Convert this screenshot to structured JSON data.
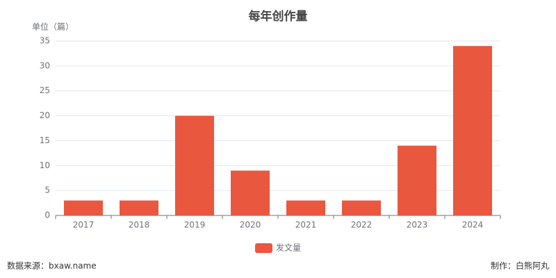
{
  "chart_data": {
    "type": "bar",
    "title": "每年创作量",
    "y_axis_label": "单位（篇）",
    "categories": [
      "2017",
      "2018",
      "2019",
      "2020",
      "2021",
      "2022",
      "2023",
      "2024"
    ],
    "series": [
      {
        "name": "发文量",
        "color": "#e9573f",
        "values": [
          3,
          3,
          20,
          9,
          3,
          3,
          14,
          34
        ]
      }
    ],
    "ylim": [
      0,
      35
    ],
    "yticks": [
      0,
      5,
      10,
      15,
      20,
      25,
      30,
      35
    ],
    "grid": true,
    "legend": "bottom",
    "source": "数据来源：bxaw.name",
    "credit": "制作：白熊阿丸"
  }
}
